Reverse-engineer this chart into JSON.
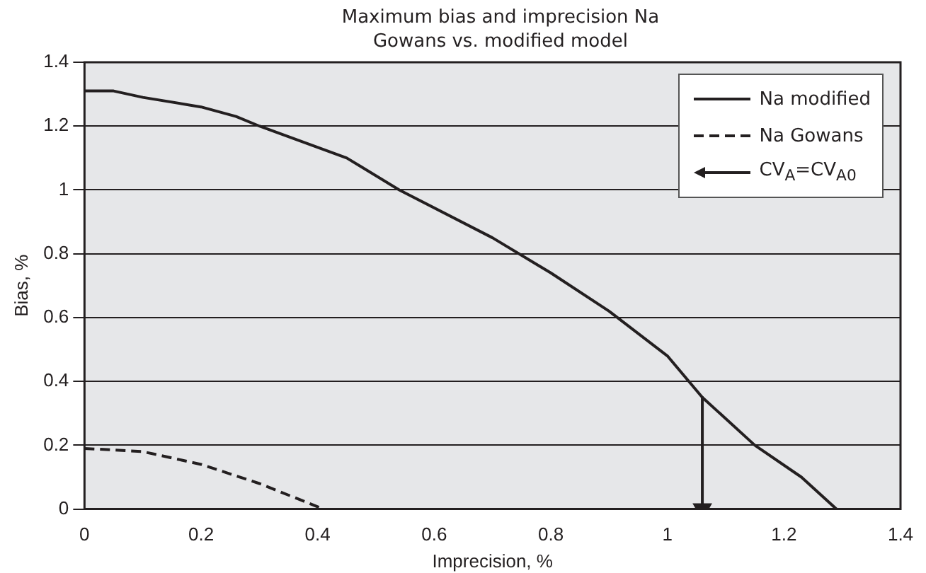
{
  "chart_data": {
    "type": "line",
    "title": "Maximum bias and imprecision Na",
    "subtitle": "Gowans vs. modified model",
    "xlabel": "Imprecision, %",
    "ylabel": "Bias, %",
    "xlim": [
      0,
      1.4
    ],
    "xticks": [
      0,
      0.2,
      0.4,
      0.6,
      0.8,
      1,
      1.2,
      1.4
    ],
    "ylim": [
      0,
      1.4
    ],
    "yticks": [
      0,
      0.2,
      0.4,
      0.6,
      0.8,
      1,
      1.2,
      1.4
    ],
    "grid": "y",
    "legend": "top right",
    "marker": "none",
    "series": [
      {
        "name": "Na modified",
        "color": "#231f20",
        "line_style": "solid",
        "x": [
          0,
          0.05,
          0.1,
          0.2,
          0.26,
          0.3,
          0.45,
          0.54,
          0.7,
          0.8,
          0.9,
          1.0,
          1.06,
          1.15,
          1.23,
          1.29
        ],
        "values": [
          1.31,
          1.31,
          1.29,
          1.26,
          1.23,
          1.2,
          1.1,
          1.0,
          0.85,
          0.74,
          0.62,
          0.48,
          0.35,
          0.2,
          0.1,
          0
        ]
      },
      {
        "name": "Na Gowans",
        "color": "#231f20",
        "line_style": "dashed",
        "x": [
          0,
          0.1,
          0.2,
          0.3,
          0.41
        ],
        "values": [
          0.19,
          0.18,
          0.14,
          0.08,
          0
        ]
      },
      {
        "name": "CV$_{A}$=CV$_{A0}$",
        "color": "#231f20",
        "line_style": "solid",
        "marker": "triangle",
        "x": [
          1.06,
          1.06
        ],
        "values": [
          0.35,
          0
        ]
      }
    ]
  }
}
